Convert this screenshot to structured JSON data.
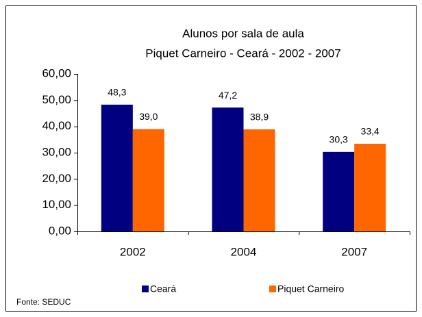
{
  "chart_data": {
    "type": "bar",
    "title": "Alunos por sala de aula",
    "subtitle": "Piquet Carneiro - Ceará - 2002 - 2007",
    "categories": [
      "2002",
      "2004",
      "2007"
    ],
    "series": [
      {
        "name": "Ceará",
        "color": "#000080",
        "values": [
          48.3,
          47.2,
          30.3
        ],
        "value_labels": [
          "48,3",
          "47,2",
          "30,3"
        ]
      },
      {
        "name": "Piquet Carneiro",
        "color": "#ff6600",
        "values": [
          39.0,
          38.9,
          33.4
        ],
        "value_labels": [
          "39,0",
          "38,9",
          "33,4"
        ]
      }
    ],
    "ylim": [
      0,
      60
    ],
    "yticks": [
      {
        "value": 0,
        "label": "0,00"
      },
      {
        "value": 10,
        "label": "10,00"
      },
      {
        "value": 20,
        "label": "20,00"
      },
      {
        "value": 30,
        "label": "30,00"
      },
      {
        "value": 40,
        "label": "40,00"
      },
      {
        "value": 50,
        "label": "50,00"
      },
      {
        "value": 60,
        "label": "60,00"
      }
    ],
    "grid": false,
    "legend": "bottom",
    "source": "Fonte: SEDUC"
  }
}
